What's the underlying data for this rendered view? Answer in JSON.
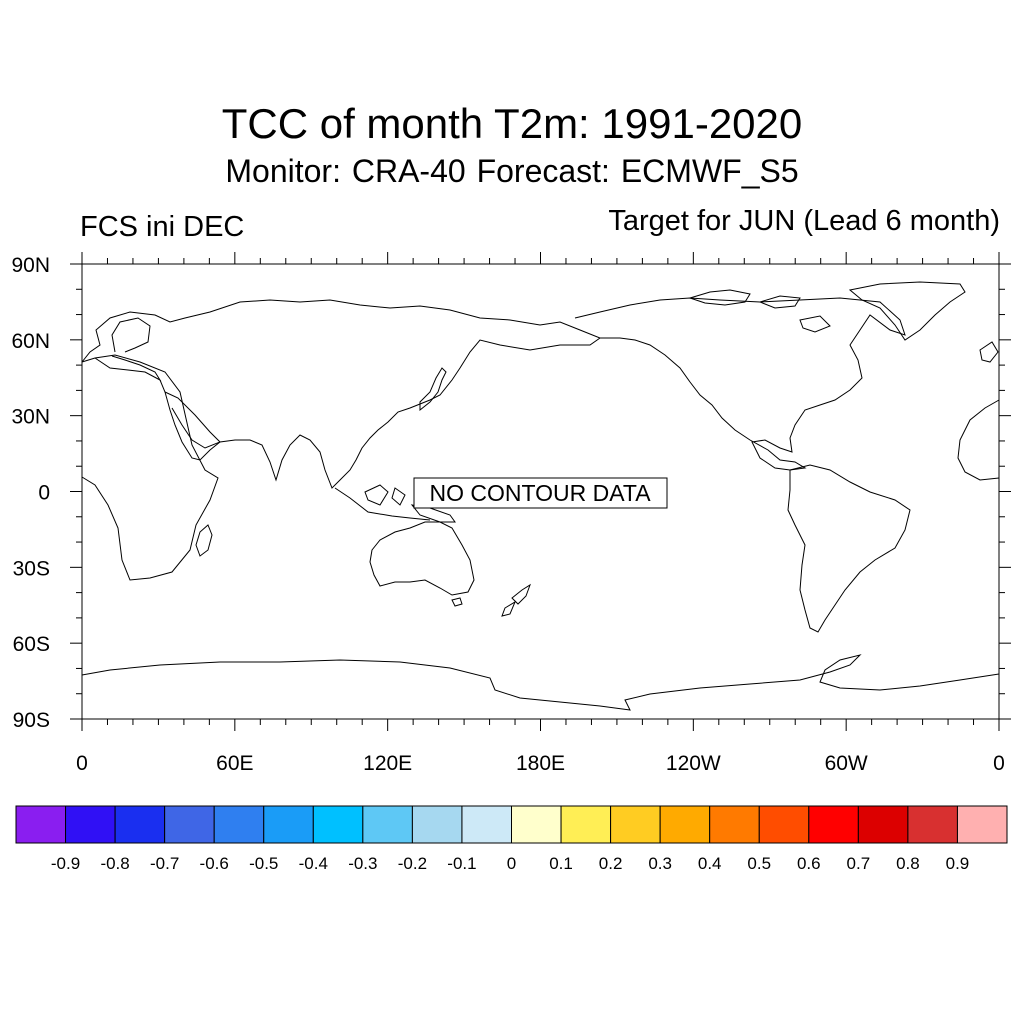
{
  "title": "TCC of month T2m: 1991-2020",
  "subtitle": "Monitor: CRA-40   Forecast: ECMWF_S5",
  "left_label": "FCS ini DEC",
  "right_label": "Target for JUN (Lead 6 month)",
  "map": {
    "no_data_label": "NO CONTOUR DATA",
    "lat_labels": [
      "90N",
      "60N",
      "30N",
      "0",
      "30S",
      "60S",
      "90S"
    ],
    "lon_labels": [
      "0",
      "60E",
      "120E",
      "180E",
      "120W",
      "60W",
      "0"
    ]
  },
  "colorbar": {
    "colors": [
      "#8a1ef0",
      "#3010f5",
      "#1a2ff0",
      "#3f66e6",
      "#2f7ff0",
      "#1a9cf7",
      "#00c0ff",
      "#5ec8f5",
      "#a6d8f0",
      "#cde9f7",
      "#ffffcc",
      "#ffee55",
      "#ffcc22",
      "#ffaa00",
      "#ff7a00",
      "#ff4d00",
      "#ff0000",
      "#dc0000",
      "#d83030",
      "#ffb0b0"
    ],
    "labels": [
      "-0.9",
      "-0.8",
      "-0.7",
      "-0.6",
      "-0.5",
      "-0.4",
      "-0.3",
      "-0.2",
      "-0.1",
      "0",
      "0.1",
      "0.2",
      "0.3",
      "0.4",
      "0.5",
      "0.6",
      "0.7",
      "0.8",
      "0.9"
    ]
  }
}
